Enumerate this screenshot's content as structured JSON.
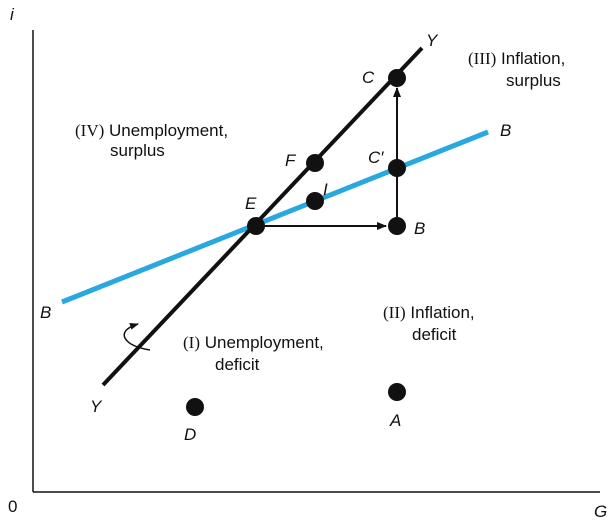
{
  "axes": {
    "y_label": "i",
    "x_label": "G",
    "origin": "0"
  },
  "lines": {
    "yy": {
      "start_label": "Y",
      "end_label": "Y"
    },
    "bb": {
      "start_label": "B",
      "end_label": "B"
    }
  },
  "points": {
    "C": "C",
    "F": "F",
    "C_prime": "C′",
    "I": "I",
    "E": "E",
    "B": "B",
    "A": "A",
    "D": "D"
  },
  "regions": [
    {
      "numeral": "(IV)",
      "lines": [
        "Unemployment,",
        "surplus"
      ]
    },
    {
      "numeral": "(III)",
      "lines": [
        "Inflation,",
        "surplus"
      ]
    },
    {
      "numeral": "(II)",
      "lines": [
        "Inflation,",
        "deficit"
      ]
    },
    {
      "numeral": "(I)",
      "lines": [
        "Unemployment,",
        "deficit"
      ]
    }
  ]
}
